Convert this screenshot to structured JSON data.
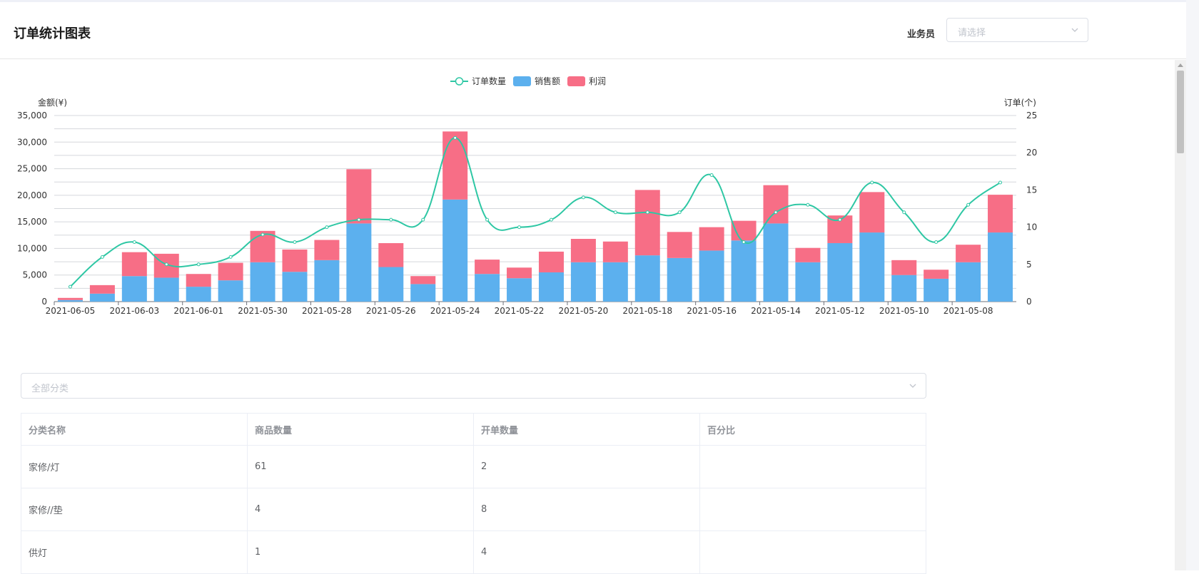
{
  "header": {
    "title": "订单统计图表",
    "filter_label": "业务员",
    "filter_placeholder": "请选择"
  },
  "legend": {
    "orders": "订单数量",
    "sales": "销售额",
    "profit": "利润"
  },
  "colors": {
    "sales": "#5cb0ee",
    "profit": "#f76e86",
    "orders": "#2ec7a4"
  },
  "chart_data": {
    "type": "bar",
    "stacked": true,
    "left_axis_label": "金额(¥)",
    "right_axis_label": "订单(个)",
    "left_ylim": [
      0,
      35000
    ],
    "left_ticks": [
      "35,000",
      "30,000",
      "25,000",
      "20,000",
      "15,000",
      "10,000",
      "5,000",
      "0"
    ],
    "right_ylim": [
      0,
      25
    ],
    "right_ticks": [
      "25",
      "20",
      "15",
      "10",
      "5",
      "0"
    ],
    "grid": true,
    "legend_position": "top-center",
    "x_tick_labels": [
      "2021-06-05",
      "2021-06-03",
      "2021-06-01",
      "2021-05-30",
      "2021-05-28",
      "2021-05-26",
      "2021-05-24",
      "2021-05-22",
      "2021-05-20",
      "2021-05-18",
      "2021-05-16",
      "2021-05-14",
      "2021-05-12",
      "2021-05-10",
      "2021-05-08"
    ],
    "categories": [
      "2021-06-05",
      "2021-06-04",
      "2021-06-03",
      "2021-06-02",
      "2021-06-01",
      "2021-05-31",
      "2021-05-30",
      "2021-05-29",
      "2021-05-28",
      "2021-05-27",
      "2021-05-26",
      "2021-05-25",
      "2021-05-24",
      "2021-05-23",
      "2021-05-22",
      "2021-05-21",
      "2021-05-20",
      "2021-05-19",
      "2021-05-18",
      "2021-05-17",
      "2021-05-16",
      "2021-05-15",
      "2021-05-14",
      "2021-05-13",
      "2021-05-12",
      "2021-05-11",
      "2021-05-10",
      "2021-05-09",
      "2021-05-08",
      "2021-05-07"
    ],
    "series": [
      {
        "name": "销售额",
        "type": "bar",
        "axis": "left",
        "values": [
          300,
          1500,
          4800,
          4500,
          2800,
          4000,
          7400,
          5600,
          7800,
          14700,
          6500,
          3300,
          19200,
          5200,
          4400,
          5500,
          7400,
          7400,
          8700,
          8200,
          9600,
          11500,
          14700,
          7400,
          11000,
          13000,
          5000,
          4300,
          7400,
          13000
        ]
      },
      {
        "name": "利润",
        "type": "bar",
        "axis": "left",
        "values": [
          400,
          1600,
          4500,
          4500,
          2400,
          3300,
          5900,
          4200,
          3800,
          10200,
          4500,
          1500,
          12800,
          2700,
          2000,
          3900,
          4400,
          3900,
          12300,
          4900,
          4400,
          3700,
          7200,
          2700,
          5200,
          7600,
          2800,
          1700,
          3300,
          7100
        ]
      },
      {
        "name": "订单数量",
        "type": "line",
        "axis": "right",
        "values": [
          2,
          6,
          8,
          5,
          5,
          6,
          9,
          8,
          10,
          11,
          11,
          11,
          22,
          11,
          10,
          11,
          14,
          12,
          12,
          12,
          17,
          8,
          12,
          13,
          11,
          16,
          12,
          8,
          13,
          16
        ]
      }
    ]
  },
  "category_filter": {
    "placeholder": "全部分类"
  },
  "table": {
    "columns": [
      "分类名称",
      "商品数量",
      "开单数量",
      "百分比"
    ],
    "rows": [
      [
        "家修/灯",
        "61",
        "2",
        ""
      ],
      [
        "家修//垫",
        "4",
        "8",
        ""
      ],
      [
        "供灯",
        "1",
        "4",
        ""
      ]
    ]
  }
}
